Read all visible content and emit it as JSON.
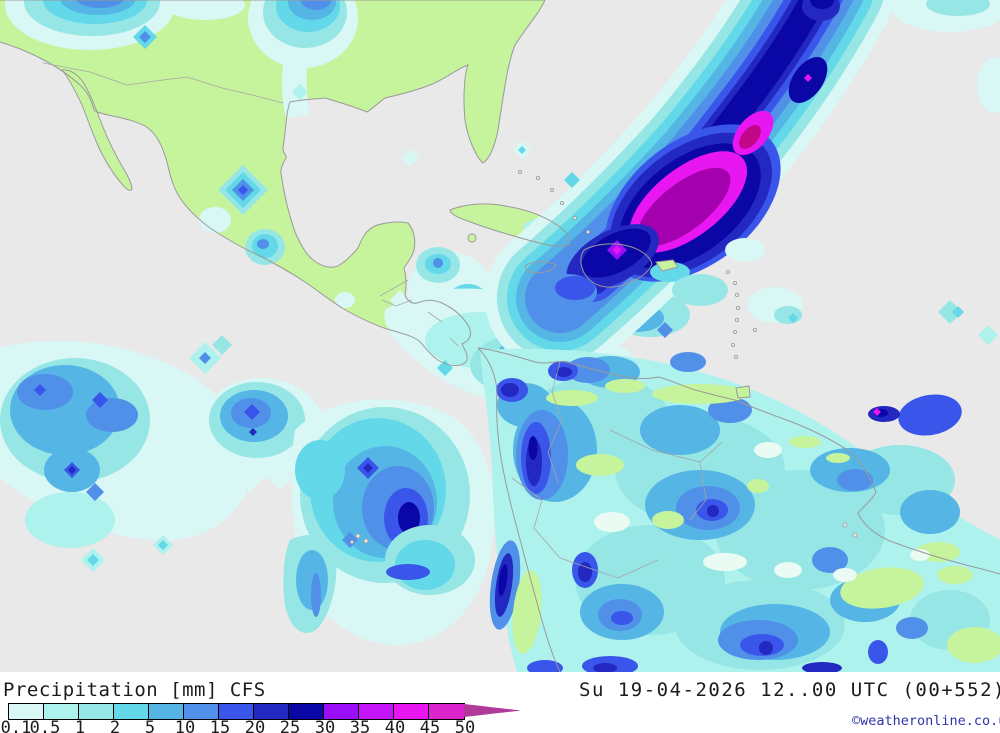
{
  "footer": {
    "title": "Precipitation [mm] CFS",
    "datetime": "Su 19-04-2026 12..00 UTC (00+552)",
    "copyright": "©weatheronline.co.uk"
  },
  "legend": {
    "unit": "mm",
    "tick_labels": [
      "0.1",
      "0.5",
      "1",
      "2",
      "5",
      "10",
      "15",
      "20",
      "25",
      "30",
      "35",
      "40",
      "45",
      "50"
    ],
    "band_colors": [
      "#d8f7f5",
      "#aef2ee",
      "#96e6e6",
      "#62d8e8",
      "#55b5e5",
      "#5090e8",
      "#3a55ea",
      "#2228c0",
      "#0b06a6",
      "#9b0ef8",
      "#c414f8",
      "#e816f0",
      "#da25cc"
    ],
    "overflow_arrow_color": "#b03a9a"
  },
  "map": {
    "variable": "Precipitation [mm]",
    "model": "CFS",
    "colors": {
      "sea": "#e9e9e9",
      "land": "#c6f49c",
      "coastline": "#9a9a9a",
      "storm_core": "#a400ae",
      "storm_ring": "#e816f0"
    }
  }
}
